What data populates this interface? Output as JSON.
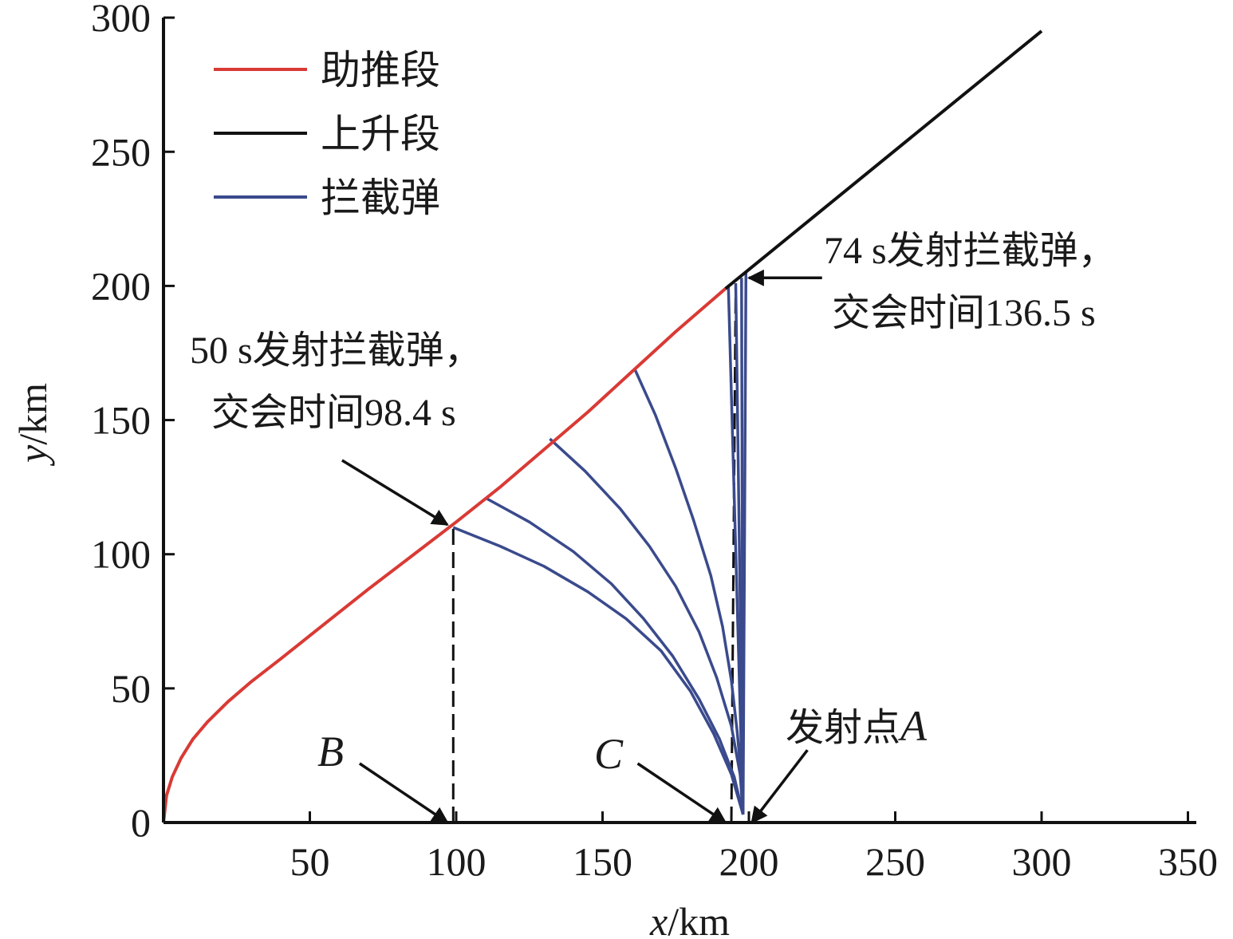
{
  "chart_data": {
    "type": "line",
    "title": "",
    "xlabel": {
      "var": "x",
      "unit": "/km"
    },
    "ylabel": {
      "var": "y",
      "unit": "/km"
    },
    "xlim": [
      0,
      350
    ],
    "ylim": [
      0,
      300
    ],
    "xticks": [
      50,
      100,
      150,
      200,
      250,
      300,
      350
    ],
    "yticks": [
      0,
      50,
      100,
      150,
      200,
      250,
      300
    ],
    "x_tick_labels": [
      "50",
      "100",
      "150",
      "200",
      "250",
      "300",
      "350"
    ],
    "y_tick_labels": [
      "0",
      "50",
      "100",
      "150",
      "200",
      "250",
      "300"
    ],
    "grid": false,
    "legend_position": "top-left",
    "colors": {
      "boost": "#d93a35",
      "ascent": "#111111",
      "interceptor": "#3a4a8c",
      "guide": "#111111"
    },
    "series": [
      {
        "name": "助推段",
        "color_key": "boost",
        "x": [
          0,
          1,
          3,
          6,
          10,
          15,
          22,
          30,
          40,
          55,
          70,
          85,
          100,
          115,
          130,
          145,
          160,
          175,
          192
        ],
        "y": [
          0,
          10,
          17,
          24,
          31,
          37.5,
          45,
          52.5,
          61,
          74,
          87,
          99.5,
          112,
          125,
          139,
          153,
          168,
          183,
          199
        ]
      },
      {
        "name": "上升段",
        "color_key": "ascent",
        "x": [
          192,
          300
        ],
        "y": [
          199,
          295
        ]
      },
      {
        "name": "拦截弹",
        "color_key": "interceptor",
        "trajectories": [
          {
            "x": [
              99,
              115,
              130,
              145,
              158,
              170,
              180,
              188,
              194,
              198
            ],
            "y": [
              110,
              103,
              95.5,
              86,
              76,
              64,
              49,
              33,
              18,
              3
            ]
          },
          {
            "x": [
              110,
              125,
              140,
              153,
              164,
              174,
              183,
              190,
              195,
              198
            ],
            "y": [
              121,
              112,
              101,
              89,
              76,
              62,
              46,
              31,
              17,
              3
            ]
          },
          {
            "x": [
              132,
              144,
              156,
              166,
              175,
              183,
              189,
              194,
              197,
              198
            ],
            "y": [
              143,
              131,
              117,
              103,
              88,
              71,
              54,
              36,
              18,
              3
            ]
          },
          {
            "x": [
              161,
              168,
              175,
              181,
              187,
              191,
              194,
              196,
              197.5,
              198
            ],
            "y": [
              169,
              152,
              132,
              113,
              92,
              73,
              53,
              34,
              16,
              3
            ]
          },
          {
            "x": [
              193,
              198
            ],
            "y": [
              199.5,
              3
            ]
          },
          {
            "x": [
              195.5,
              198
            ],
            "y": [
              201,
              3
            ]
          },
          {
            "x": [
              197.5,
              198
            ],
            "y": [
              203,
              3
            ]
          },
          {
            "x": [
              199,
              198
            ],
            "y": [
              205,
              3
            ]
          }
        ]
      }
    ],
    "guide_lines": [
      {
        "x": [
          99,
          99
        ],
        "y": [
          0,
          110
        ]
      },
      {
        "x": [
          194,
          195.5
        ],
        "y": [
          0,
          201
        ]
      }
    ],
    "annotations": {
      "a50_line1": "50 s发射拦截弹，",
      "a50_line2": "交会时间98.4 s",
      "a74_line1": "74 s发射拦截弹，",
      "a74_line2": "交会时间136.5 s",
      "label_B": "B",
      "label_C": "C",
      "launch_cn": "发射点",
      "launch_A": "A"
    },
    "arrows": [
      {
        "name": "arrow-a50",
        "from": [
          61,
          135
        ],
        "to": [
          97,
          111
        ]
      },
      {
        "name": "arrow-a74",
        "from": [
          225,
          203
        ],
        "to": [
          200,
          203
        ]
      },
      {
        "name": "arrow-b",
        "from": [
          67,
          22
        ],
        "to": [
          97,
          0
        ]
      },
      {
        "name": "arrow-c",
        "from": [
          162,
          22
        ],
        "to": [
          192,
          0
        ]
      },
      {
        "name": "arrow-a",
        "from": [
          220,
          27
        ],
        "to": [
          201,
          0
        ]
      }
    ]
  }
}
